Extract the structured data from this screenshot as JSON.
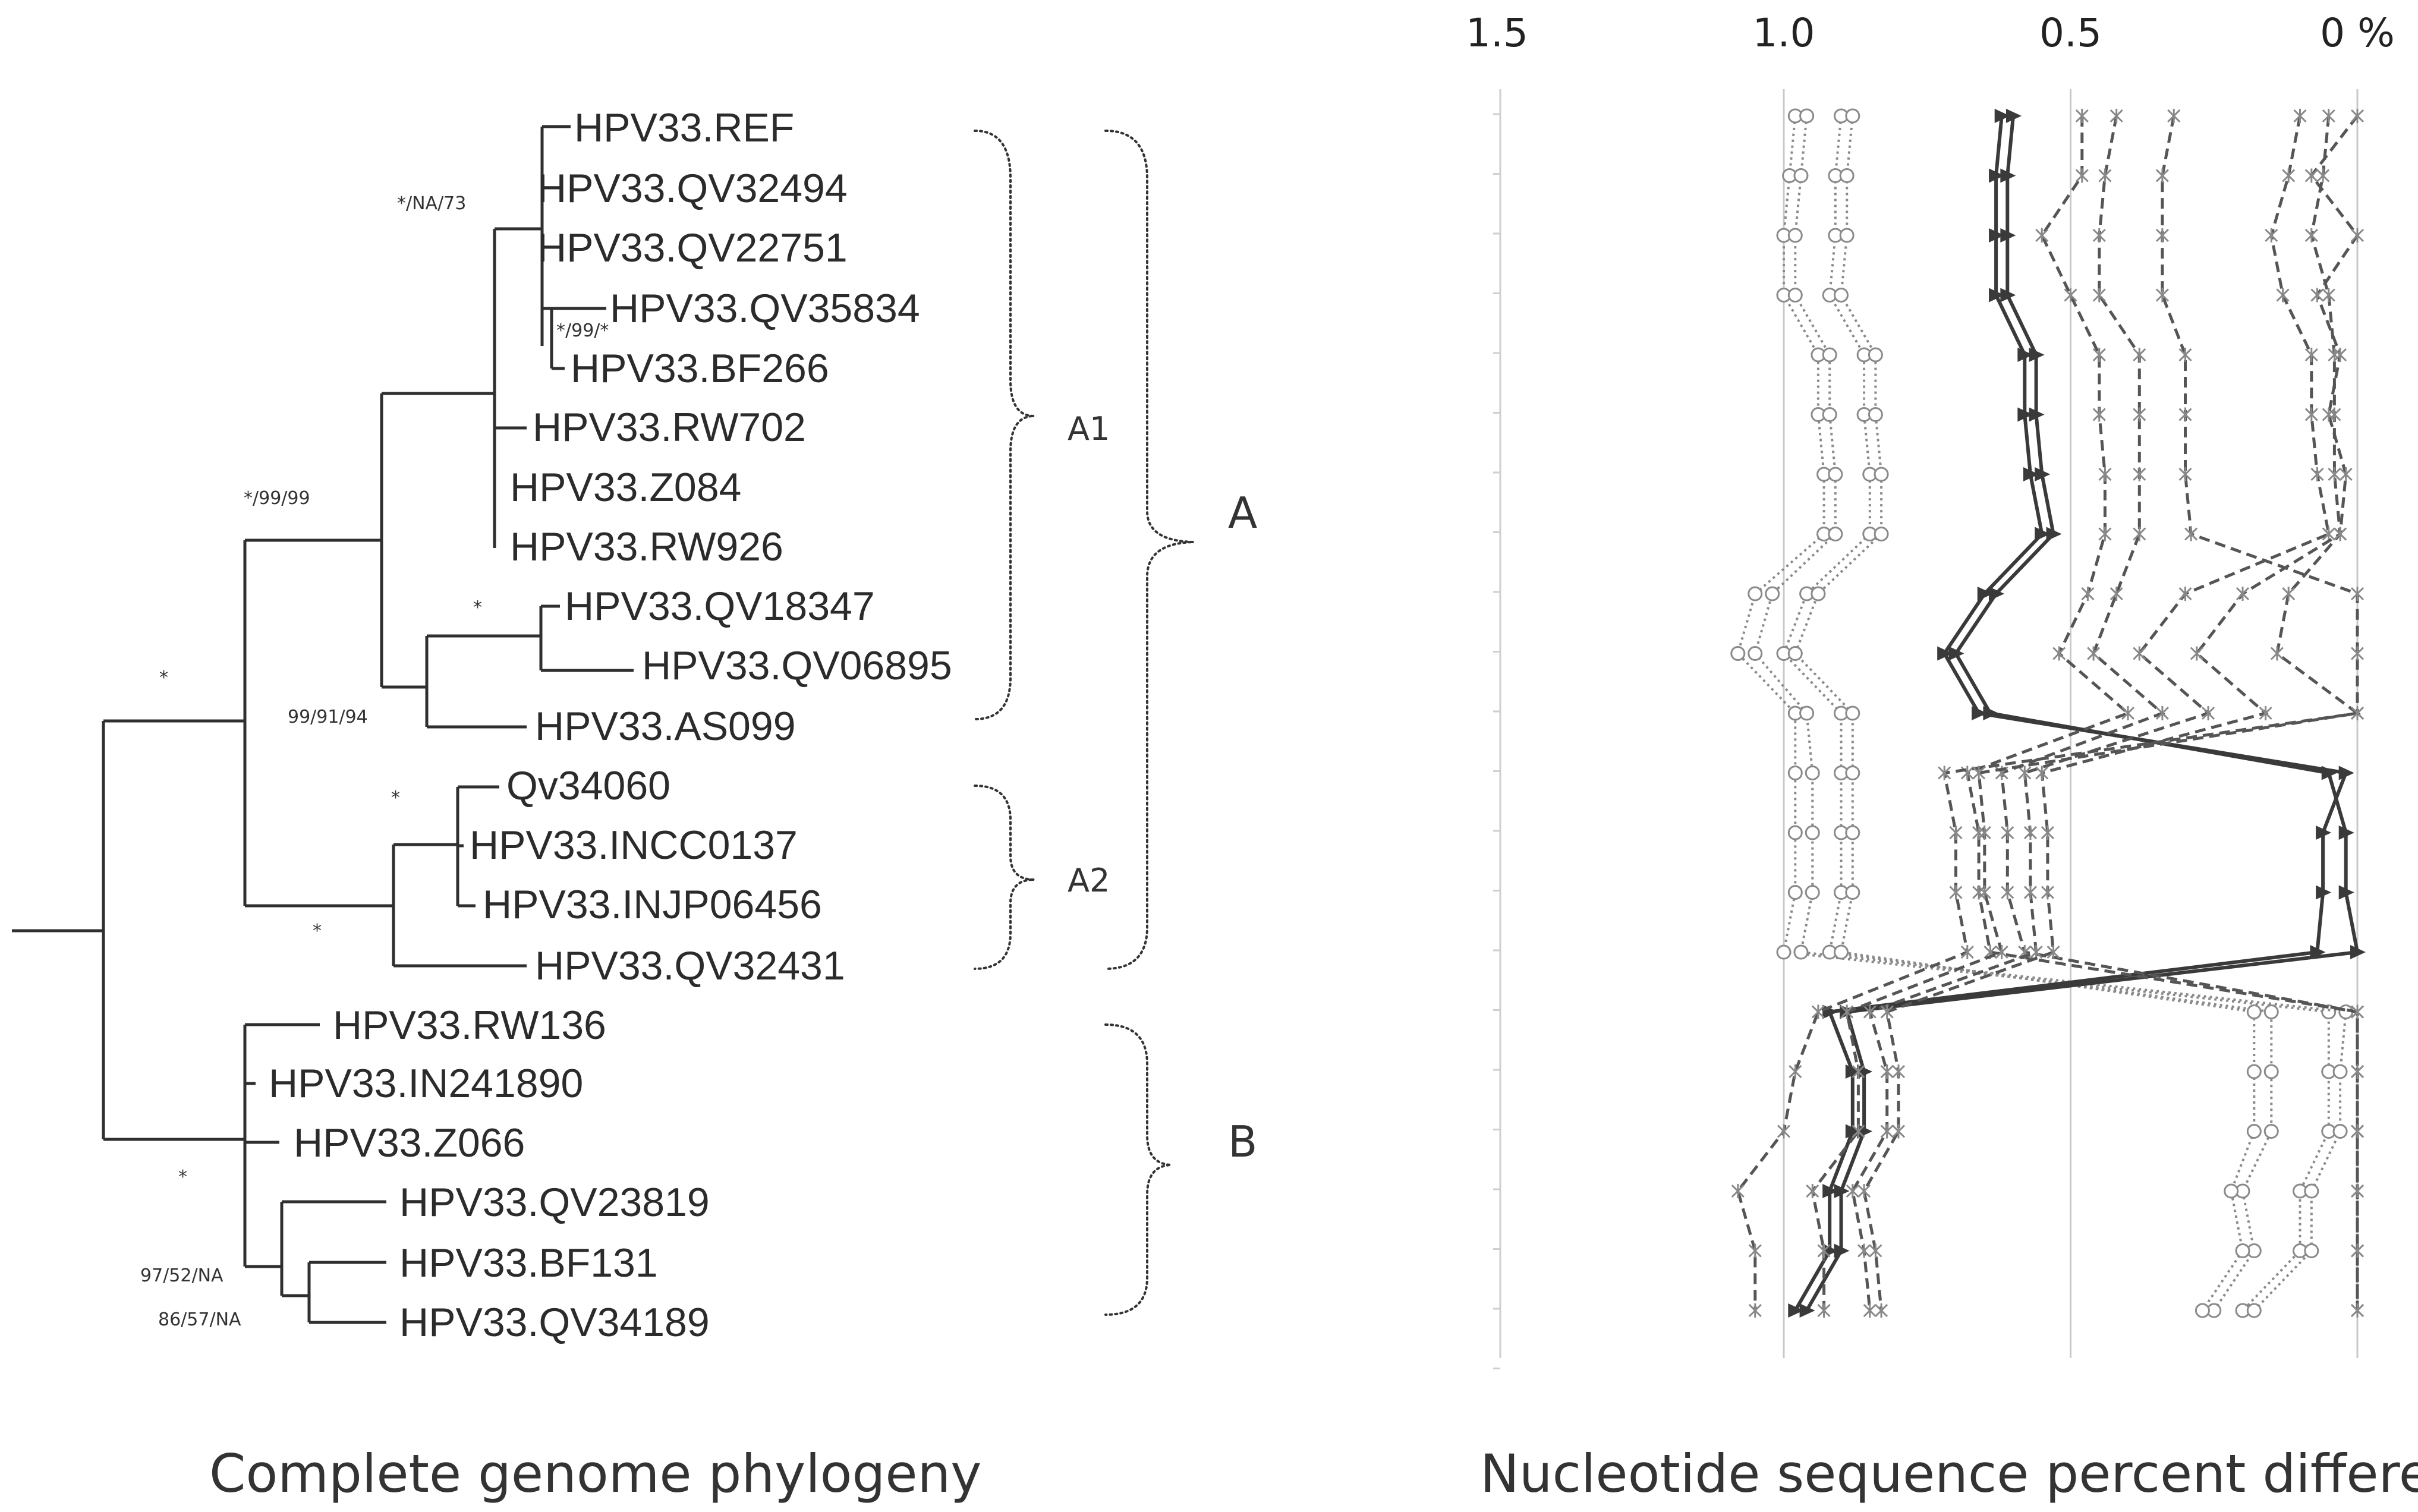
{
  "tree": {
    "caption": "Complete genome phylogeny",
    "taxa": [
      "HPV33.REF",
      "HPV33.QV32494",
      "HPV33.QV22751",
      "HPV33.QV35834",
      "HPV33.BF266",
      "HPV33.RW702",
      "HPV33.Z084",
      "HPV33.RW926",
      "HPV33.QV18347",
      "HPV33.QV06895",
      "HPV33.AS099",
      "Qv34060",
      "HPV33.INCC0137",
      "HPV33.INJP06456",
      "HPV33.QV32431",
      "HPV33.RW136",
      "HPV33.IN241890",
      "HPV33.Z066",
      "HPV33.QV23819",
      "HPV33.BF131",
      "HPV33.QV34189"
    ],
    "support": [
      "*/NA/73",
      "*/99/*",
      "*/99/99",
      "*",
      "*",
      "99/91/94",
      "*",
      "*",
      "*",
      "97/52/NA",
      "86/57/NA"
    ],
    "clades": {
      "A1": "A1",
      "A2": "A2",
      "A": "A",
      "B": "B"
    }
  },
  "chart_data": {
    "type": "line",
    "title": "",
    "xlabel": "Nucleotide sequence percent different",
    "ylabel": "",
    "x_tick_labels": [
      "1.5",
      "1.0",
      "0.5",
      "0 %"
    ],
    "xlim": [
      1.5,
      0
    ],
    "x_reversed": true,
    "grid": true,
    "rows": 21,
    "series": [
      {
        "style": "dotted-circle",
        "color": "#8a8a8a",
        "values": [
          0.98,
          0.99,
          1.0,
          1.0,
          0.94,
          0.94,
          0.93,
          0.93,
          1.05,
          1.08,
          0.98,
          0.98,
          0.98,
          0.98,
          1.0,
          0.05,
          0.05,
          0.05,
          0.1,
          0.1,
          0.2
        ]
      },
      {
        "style": "dotted-circle",
        "color": "#8a8a8a",
        "values": [
          0.96,
          0.97,
          0.98,
          0.98,
          0.92,
          0.92,
          0.91,
          0.91,
          1.02,
          1.05,
          0.96,
          0.95,
          0.95,
          0.95,
          0.97,
          0.02,
          0.03,
          0.03,
          0.08,
          0.08,
          0.18
        ]
      },
      {
        "style": "dotted-circle",
        "color": "#8a8a8a",
        "values": [
          0.9,
          0.91,
          0.91,
          0.92,
          0.86,
          0.86,
          0.85,
          0.85,
          0.96,
          1.0,
          0.9,
          0.9,
          0.9,
          0.9,
          0.92,
          0.15,
          0.15,
          0.15,
          0.2,
          0.18,
          0.25
        ]
      },
      {
        "style": "dotted-circle",
        "color": "#8a8a8a",
        "values": [
          0.88,
          0.89,
          0.89,
          0.9,
          0.84,
          0.84,
          0.83,
          0.83,
          0.94,
          0.98,
          0.88,
          0.88,
          0.88,
          0.88,
          0.9,
          0.18,
          0.18,
          0.18,
          0.22,
          0.2,
          0.27
        ]
      },
      {
        "style": "solid-triangle",
        "color": "#3a3a3a",
        "values": [
          0.62,
          0.63,
          0.63,
          0.63,
          0.58,
          0.58,
          0.57,
          0.55,
          0.65,
          0.72,
          0.66,
          0.02,
          0.06,
          0.06,
          0.07,
          0.92,
          0.88,
          0.88,
          0.92,
          0.92,
          0.98
        ]
      },
      {
        "style": "solid-triangle",
        "color": "#3a3a3a",
        "values": [
          0.6,
          0.61,
          0.61,
          0.61,
          0.56,
          0.56,
          0.55,
          0.53,
          0.63,
          0.7,
          0.64,
          0.05,
          0.02,
          0.02,
          0.0,
          0.89,
          0.86,
          0.86,
          0.9,
          0.9,
          0.96
        ]
      },
      {
        "style": "dashed-star",
        "color": "#555555",
        "values": [
          0.48,
          0.48,
          0.55,
          0.5,
          0.45,
          0.45,
          0.44,
          0.44,
          0.47,
          0.52,
          0.4,
          0.68,
          0.66,
          0.66,
          0.64,
          0.0,
          0.0,
          0.0,
          0.0,
          0.0,
          0.0
        ]
      },
      {
        "style": "dashed-star",
        "color": "#555555",
        "values": [
          0.42,
          0.44,
          0.45,
          0.45,
          0.38,
          0.38,
          0.38,
          0.38,
          0.42,
          0.46,
          0.34,
          0.62,
          0.61,
          0.61,
          0.58,
          0.0,
          0.0,
          0.0,
          0.0,
          0.0,
          0.0
        ]
      },
      {
        "style": "dashed-star",
        "color": "#555555",
        "values": [
          0.32,
          0.34,
          0.34,
          0.34,
          0.3,
          0.3,
          0.3,
          0.29,
          0.0,
          0.0,
          0.0,
          0.72,
          0.7,
          0.7,
          0.68,
          0.94,
          0.98,
          1.0,
          1.08,
          1.05,
          1.05
        ]
      },
      {
        "style": "dashed-star",
        "color": "#555555",
        "values": [
          0.1,
          0.12,
          0.15,
          0.13,
          0.08,
          0.08,
          0.07,
          0.05,
          0.3,
          0.38,
          0.26,
          0.58,
          0.57,
          0.57,
          0.56,
          0.85,
          0.82,
          0.82,
          0.88,
          0.86,
          0.85
        ]
      },
      {
        "style": "dashed-star",
        "color": "#555555",
        "values": [
          0.05,
          0.06,
          0.08,
          0.05,
          0.04,
          0.04,
          0.04,
          0.03,
          0.2,
          0.28,
          0.16,
          0.55,
          0.54,
          0.54,
          0.53,
          0.82,
          0.8,
          0.8,
          0.86,
          0.84,
          0.83
        ]
      },
      {
        "style": "dashed-star",
        "color": "#555555",
        "values": [
          0.0,
          0.08,
          0.0,
          0.07,
          0.03,
          0.05,
          0.02,
          0.03,
          0.12,
          0.14,
          0.0,
          0.66,
          0.65,
          0.65,
          0.62,
          0.89,
          0.87,
          0.87,
          0.95,
          0.93,
          0.93
        ]
      }
    ]
  }
}
